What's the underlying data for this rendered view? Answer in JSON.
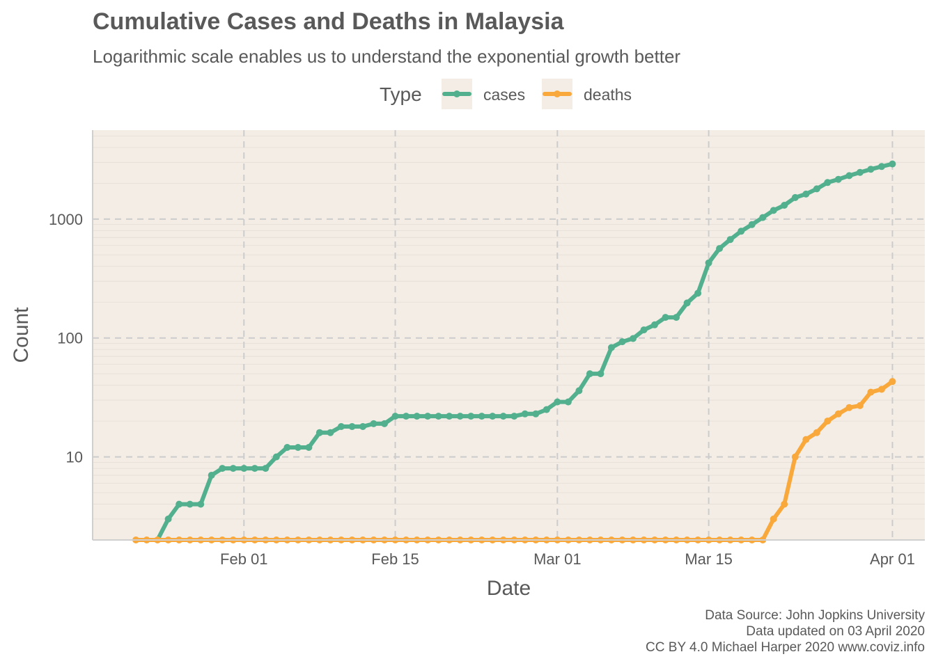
{
  "title": "Cumulative Cases and Deaths in Malaysia",
  "subtitle": "Logarithmic scale enables us to understand the exponential growth better",
  "caption": [
    "Data Source: John Jopkins University",
    "Data updated on 03 April 2020",
    "CC BY 4.0 Michael Harper 2020 www.coviz.info"
  ],
  "colors": {
    "panel": "#f3ede6",
    "cases": "#52b08e",
    "deaths": "#f9a93c",
    "grid": "#cccccc",
    "text": "#595959"
  },
  "chart_data": {
    "type": "line",
    "xlabel": "Date",
    "ylabel": "Count",
    "y_scale": "log10",
    "ylim": [
      2,
      5600
    ],
    "xlim": [
      "2020-01-18",
      "2020-04-04"
    ],
    "x_ticks": [
      {
        "date": "2020-02-01",
        "label": "Feb 01"
      },
      {
        "date": "2020-02-15",
        "label": "Feb 15"
      },
      {
        "date": "2020-03-01",
        "label": "Mar 01"
      },
      {
        "date": "2020-03-15",
        "label": "Mar 15"
      },
      {
        "date": "2020-04-01",
        "label": "Apr 01"
      }
    ],
    "y_ticks": [
      {
        "value": 10,
        "label": "10"
      },
      {
        "value": 100,
        "label": "100"
      },
      {
        "value": 1000,
        "label": "1000"
      }
    ],
    "legend": {
      "title": "Type",
      "position": "top"
    },
    "grid": true,
    "series": [
      {
        "name": "cases",
        "x": [
          "2020-01-22",
          "2020-01-23",
          "2020-01-24",
          "2020-01-25",
          "2020-01-26",
          "2020-01-27",
          "2020-01-28",
          "2020-01-29",
          "2020-01-30",
          "2020-01-31",
          "2020-02-01",
          "2020-02-02",
          "2020-02-03",
          "2020-02-04",
          "2020-02-05",
          "2020-02-06",
          "2020-02-07",
          "2020-02-08",
          "2020-02-09",
          "2020-02-10",
          "2020-02-11",
          "2020-02-12",
          "2020-02-13",
          "2020-02-14",
          "2020-02-15",
          "2020-02-16",
          "2020-02-17",
          "2020-02-18",
          "2020-02-19",
          "2020-02-20",
          "2020-02-21",
          "2020-02-22",
          "2020-02-23",
          "2020-02-24",
          "2020-02-25",
          "2020-02-26",
          "2020-02-27",
          "2020-02-28",
          "2020-02-29",
          "2020-03-01",
          "2020-03-02",
          "2020-03-03",
          "2020-03-04",
          "2020-03-05",
          "2020-03-06",
          "2020-03-07",
          "2020-03-08",
          "2020-03-09",
          "2020-03-10",
          "2020-03-11",
          "2020-03-12",
          "2020-03-13",
          "2020-03-14",
          "2020-03-15",
          "2020-03-16",
          "2020-03-17",
          "2020-03-18",
          "2020-03-19",
          "2020-03-20",
          "2020-03-21",
          "2020-03-22",
          "2020-03-23",
          "2020-03-24",
          "2020-03-25",
          "2020-03-26",
          "2020-03-27",
          "2020-03-28",
          "2020-03-29",
          "2020-03-30",
          "2020-03-31",
          "2020-04-01"
        ],
        "values": [
          0,
          0,
          0,
          3,
          4,
          4,
          4,
          7,
          8,
          8,
          8,
          8,
          8,
          10,
          12,
          12,
          12,
          16,
          16,
          18,
          18,
          18,
          19,
          19,
          22,
          22,
          22,
          22,
          22,
          22,
          22,
          22,
          22,
          22,
          22,
          22,
          23,
          23,
          25,
          29,
          29,
          36,
          50,
          50,
          83,
          93,
          99,
          117,
          129,
          149,
          149,
          197,
          238,
          428,
          566,
          673,
          790,
          900,
          1030,
          1183,
          1306,
          1518,
          1624,
          1796,
          2031,
          2161,
          2320,
          2470,
          2626,
          2766,
          2908
        ]
      },
      {
        "name": "deaths",
        "x": [
          "2020-01-22",
          "2020-01-23",
          "2020-01-24",
          "2020-01-25",
          "2020-01-26",
          "2020-01-27",
          "2020-01-28",
          "2020-01-29",
          "2020-01-30",
          "2020-01-31",
          "2020-02-01",
          "2020-02-02",
          "2020-02-03",
          "2020-02-04",
          "2020-02-05",
          "2020-02-06",
          "2020-02-07",
          "2020-02-08",
          "2020-02-09",
          "2020-02-10",
          "2020-02-11",
          "2020-02-12",
          "2020-02-13",
          "2020-02-14",
          "2020-02-15",
          "2020-02-16",
          "2020-02-17",
          "2020-02-18",
          "2020-02-19",
          "2020-02-20",
          "2020-02-21",
          "2020-02-22",
          "2020-02-23",
          "2020-02-24",
          "2020-02-25",
          "2020-02-26",
          "2020-02-27",
          "2020-02-28",
          "2020-02-29",
          "2020-03-01",
          "2020-03-02",
          "2020-03-03",
          "2020-03-04",
          "2020-03-05",
          "2020-03-06",
          "2020-03-07",
          "2020-03-08",
          "2020-03-09",
          "2020-03-10",
          "2020-03-11",
          "2020-03-12",
          "2020-03-13",
          "2020-03-14",
          "2020-03-15",
          "2020-03-16",
          "2020-03-17",
          "2020-03-18",
          "2020-03-19",
          "2020-03-20",
          "2020-03-21",
          "2020-03-22",
          "2020-03-23",
          "2020-03-24",
          "2020-03-25",
          "2020-03-26",
          "2020-03-27",
          "2020-03-28",
          "2020-03-29",
          "2020-03-30",
          "2020-03-31",
          "2020-04-01"
        ],
        "values": [
          0,
          0,
          0,
          0,
          0,
          0,
          0,
          0,
          0,
          0,
          0,
          0,
          0,
          0,
          0,
          0,
          0,
          0,
          0,
          0,
          0,
          0,
          0,
          0,
          0,
          0,
          0,
          0,
          0,
          0,
          0,
          0,
          0,
          0,
          0,
          0,
          0,
          0,
          0,
          0,
          0,
          0,
          0,
          0,
          0,
          0,
          0,
          0,
          0,
          0,
          0,
          0,
          0,
          0,
          0,
          0,
          0,
          0,
          0,
          3,
          4,
          10,
          14,
          16,
          20,
          23,
          26,
          27,
          35,
          37,
          43
        ]
      }
    ]
  }
}
